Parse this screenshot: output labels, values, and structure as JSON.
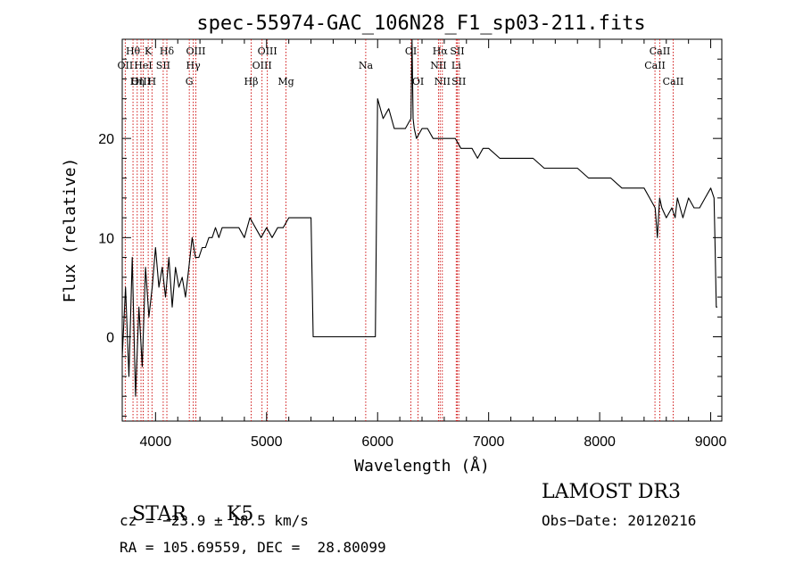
{
  "chart_data": {
    "type": "line",
    "title": "spec-55974-GAC_106N28_F1_sp03-211.fits",
    "xlabel": "Wavelength (Å)",
    "ylabel": "Flux (relative)",
    "xlim": [
      3700,
      9100
    ],
    "ylim": [
      -8.5,
      30
    ],
    "xticks": [
      4000,
      5000,
      6000,
      7000,
      8000,
      9000
    ],
    "yticks": [
      0,
      10,
      20
    ],
    "grid": false,
    "series_color": "#000000",
    "line_color": "#cc0000",
    "spectrum": {
      "x": [
        3700,
        3730,
        3760,
        3790,
        3820,
        3850,
        3880,
        3910,
        3940,
        3970,
        4000,
        4030,
        4060,
        4090,
        4120,
        4150,
        4180,
        4210,
        4240,
        4270,
        4300,
        4330,
        4360,
        4390,
        4420,
        4450,
        4480,
        4510,
        4540,
        4570,
        4600,
        4650,
        4700,
        4750,
        4800,
        4850,
        4900,
        4950,
        5000,
        5050,
        5100,
        5150,
        5200,
        5250,
        5300,
        5350,
        5390,
        5400,
        5420,
        5440,
        5800,
        5900,
        5950,
        5980,
        6000,
        6050,
        6100,
        6150,
        6200,
        6250,
        6300,
        6310,
        6320,
        6330,
        6350,
        6400,
        6450,
        6500,
        6550,
        6600,
        6650,
        6700,
        6750,
        6800,
        6850,
        6900,
        6950,
        7000,
        7100,
        7200,
        7300,
        7400,
        7500,
        7600,
        7700,
        7800,
        7900,
        8000,
        8100,
        8200,
        8300,
        8400,
        8450,
        8500,
        8520,
        8540,
        8560,
        8600,
        8650,
        8680,
        8700,
        8750,
        8800,
        8850,
        8900,
        8950,
        9000,
        9030,
        9040,
        9050,
        9060
      ],
      "y": [
        -2,
        5,
        -4,
        8,
        -6,
        3,
        -3,
        7,
        2,
        5,
        9,
        5,
        7,
        4,
        8,
        3,
        7,
        5,
        6,
        4,
        7,
        10,
        8,
        8,
        9,
        9,
        10,
        10,
        11,
        10,
        11,
        11,
        11,
        11,
        10,
        12,
        11,
        10,
        11,
        10,
        11,
        11,
        12,
        12,
        12,
        12,
        12,
        12,
        0,
        0,
        0,
        0,
        0,
        0,
        24,
        22,
        23,
        21,
        21,
        21,
        22,
        30,
        22,
        21,
        20,
        21,
        21,
        20,
        20,
        20,
        20,
        20,
        19,
        19,
        19,
        18,
        19,
        19,
        18,
        18,
        18,
        18,
        17,
        17,
        17,
        17,
        16,
        16,
        16,
        15,
        15,
        15,
        14,
        13,
        10,
        14,
        13,
        12,
        13,
        12,
        14,
        12,
        14,
        13,
        13,
        14,
        15,
        14,
        9,
        3,
        3
      ]
    },
    "lines": [
      {
        "name": "Hθ",
        "wl": 3797,
        "row": 1
      },
      {
        "name": "K",
        "wl": 3934,
        "row": 1
      },
      {
        "name": "Hδ",
        "wl": 4102,
        "row": 1
      },
      {
        "name": "OIII",
        "wl": 4363,
        "row": 1
      },
      {
        "name": "OIII",
        "wl": 5007,
        "row": 1
      },
      {
        "name": "OII",
        "wl": 3727,
        "row": 2
      },
      {
        "name": "HeI",
        "wl": 3889,
        "row": 2
      },
      {
        "name": "SII",
        "wl": 4069,
        "row": 2
      },
      {
        "name": "Hγ",
        "wl": 4340,
        "row": 2
      },
      {
        "name": "OIII",
        "wl": 4959,
        "row": 2
      },
      {
        "name": "Na",
        "wl": 5893,
        "row": 2
      },
      {
        "name": "OIII",
        "wl": 3869,
        "row": 3
      },
      {
        "name": "Hη",
        "wl": 3835,
        "row": 3
      },
      {
        "name": "H",
        "wl": 3968,
        "row": 3
      },
      {
        "name": "G",
        "wl": 4304,
        "row": 3
      },
      {
        "name": "Hβ",
        "wl": 4861,
        "row": 3
      },
      {
        "name": "Mg",
        "wl": 5175,
        "row": 3
      },
      {
        "name": "OI",
        "wl": 6300,
        "row": 1
      },
      {
        "name": "OI",
        "wl": 6364,
        "row": 3
      },
      {
        "name": "Hα",
        "wl": 6563,
        "row": 1
      },
      {
        "name": "SII",
        "wl": 6717,
        "row": 1
      },
      {
        "name": "NII",
        "wl": 6548,
        "row": 2
      },
      {
        "name": "Li",
        "wl": 6708,
        "row": 2
      },
      {
        "name": "NII",
        "wl": 6583,
        "row": 3
      },
      {
        "name": "SII",
        "wl": 6731,
        "row": 3
      },
      {
        "name": "CaII",
        "wl": 8542,
        "row": 1
      },
      {
        "name": "CaII",
        "wl": 8498,
        "row": 2
      },
      {
        "name": "CaII",
        "wl": 8662,
        "row": 3
      }
    ]
  },
  "info": {
    "class": "STAR",
    "subclass": "K5",
    "survey": "LAMOST DR3",
    "cz": "cz = −23.9 ± 18.5 km/s",
    "obs_date": "Obs−Date: 20120216",
    "coords": "RA = 105.69559, DEC =  28.80099"
  }
}
